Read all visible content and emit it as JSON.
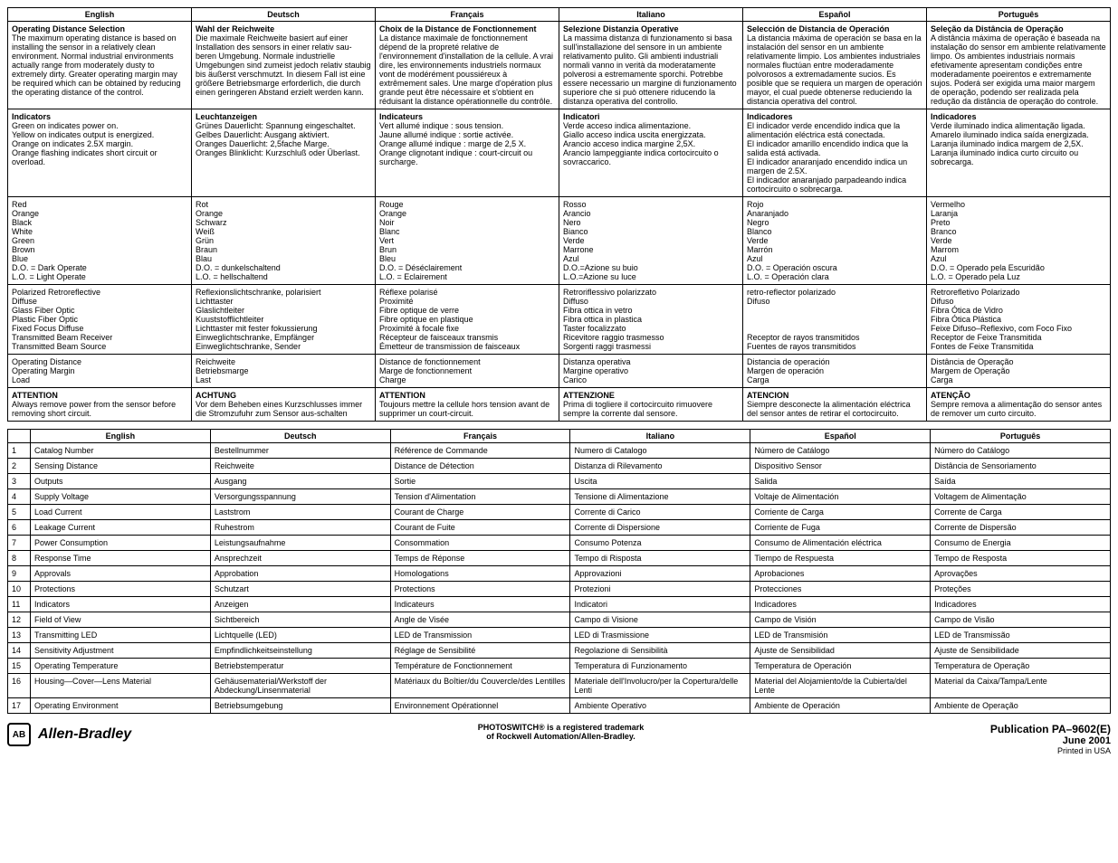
{
  "langs": [
    "English",
    "Deutsch",
    "Français",
    "Italiano",
    "Español",
    "Português"
  ],
  "table1": [
    {
      "en_title": "Operating Distance Selection",
      "en": "The maximum operating distance is based on installing the sensor in a relatively clean environment. Normal industrial environments actually range from moderately dusty to extremely dirty. Greater operating margin may be required which can be obtained by reducing the operating distance of the control.",
      "de_title": "Wahl der Reichweite",
      "de": "Die maximale Reichweite basiert auf einer Installation des sensors in einer relativ sau-beren Umgebung. Normale industrielle Umgebungen sind zumeist jedoch relativ staubig bis äußerst verschmutzt. In diesem Fall ist eine größere Betriebsmarge erforderlich, die durch einen geringeren Abstand erzielt werden kann.",
      "fr_title": "Choix de la Distance de Fonctionnement",
      "fr": "La distance maximale de fonctionnement dépend de la propreté relative de l'environnement d'installation de la cellule. A vrai dire, les environnements industriels normaux vont de modérément poussiéreux à extrêmement sales. Une marge d'opération plus grande peut être nécessaire et s'obtient en réduisant la distance opérationnelle du contrôle.",
      "it_title": "Selezione Distanzia Operative",
      "it": "La massima distanza di funzionamento si basa sull'installazione del sensore in un ambiente relativamento pulito. Gli ambienti industriali normali vanno in verità da moderatamente polverosi a estremamente sporchi. Potrebbe essere necessario un margine di funzionamento superiore che si può ottenere riducendo la distanza operativa del controllo.",
      "es_title": "Selección de Distancia de Operación",
      "es": "La distancia máxima de operación se basa en la instalación del sensor en un ambiente relativamente limpio. Los ambientes industriales normales fluctúan entre moderadamente polvorosos a extremadamente sucios. Es posible que se requiera un margen de operación mayor, el cual puede obtenerse reduciendo la distancia operativa del control.",
      "pt_title": "Seleção da Distância de Operação",
      "pt": "A distância máxima de operação é baseada na instalação do sensor em ambiente relativamente limpo. Os ambientes industriais normais efetivamente apresentam condições entre moderadamente poeirentos e extremamente sujos. Poderá ser exigida uma maior margem de operação, podendo ser realizada pela redução da distância de operação do controle."
    },
    {
      "en_title": "Indicators",
      "en": "Green on indicates power on.\nYellow on indicates output is energized.\nOrange on indicates 2.5X margin.\nOrange flashing indicates short circuit or overload.",
      "de_title": "Leuchtanzeigen",
      "de": "Grünes Dauerlicht: Spannung eingeschaltet.\nGelbes Dauerlicht: Ausgang aktiviert.\nOranges Dauerlicht: 2,5fache Marge.\nOranges Blinklicht: Kurzschluß oder Überlast.",
      "fr_title": "Indicateurs",
      "fr": "Vert allumé indique : sous tension.\nJaune allumé indique : sortie activée.\nOrange allumé indique : marge de 2,5 X.\nOrange clignotant indique : court-circuit ou surcharge.",
      "it_title": "Indicatori",
      "it": "Verde acceso indica alimentazione.\nGiallo acceso indica uscita energizzata.\nArancio acceso indica margine 2,5X.\nArancio lampeggiante indica cortocircuito o sovraccarico.",
      "es_title": "Indicadores",
      "es": "El indicador verde encendido indica que la alimentación eléctrica está conectada.\nEl indicador amarillo encendido indica que la salida está activada.\nEl indicador anaranjado encendido indica un margen de 2.5X.\nEl indicador anaranjado parpadeando indica cortocircuito o sobrecarga.",
      "pt_title": "Indicadores",
      "pt": "Verde iluminado indica alimentação ligada.\nAmarelo iluminado indica saída energizada.\nLaranja iluminado indica margem de 2,5X.\nLaranja iluminado indica curto circuito ou sobrecarga."
    },
    {
      "en": "Red\nOrange\nBlack\nWhite\nGreen\nBrown\nBlue\nD.O. = Dark Operate\nL.O. = Light Operate",
      "de": "Rot\nOrange\nSchwarz\nWeiß\nGrün\nBraun\nBlau\nD.O. = dunkelschaltend\nL.O. = hellschaltend",
      "fr": "Rouge\nOrange\nNoir\nBlanc\nVert\nBrun\nBleu\nD.O. = Déséclairement\nL.O. = Eclairement",
      "it": "Rosso\nArancio\nNero\nBianco\nVerde\nMarrone\nAzul\nD.O.=Azione su buio\nL.O.=Azione su luce",
      "es": "Rojo\nAnaranjado\nNegro\nBlanco\nVerde\nMarrón\nAzul\nD.O. = Operación oscura\nL.O. = Operación clara",
      "pt": "Vermelho\nLaranja\nPreto\nBranco\nVerde\nMarrom\nAzul\nD.O. = Operado pela Escuridão\nL.O. = Operado pela Luz"
    },
    {
      "en": "Polarized Retroreflective\nDiffuse\nGlass Fiber Optic\nPlastic Fiber Optic\nFixed Focus Diffuse\nTransmitted Beam Receiver\nTransmitted Beam Source",
      "de": "Reflexionslichtschranke, polarisiert\nLichttaster\nGlaslichtleiter\nKuuststofflichtleiter\nLichttaster mit fester fokussierung\nEinweglichtschranke, Empfänger\nEinweglichtschranke, Sender",
      "fr": "Réflexe polarisé\nProximité\nFibre optique de verre\nFibre optique en plastique\nProximité à focale fixe\nRécepteur de faisceaux transmis\nÉmetteur de transmission de faisceaux",
      "it": "Retroriflessivo polarizzato\nDiffuso\nFibra ottica in vetro\nFibra ottica in plastica\nTaster focalizzato\nRicevitore raggio trasmesso\nSorgenti raggi trasmessi",
      "es": "retro-reflector polarizado\nDifuso\n\n\n\nReceptor de rayos transmitidos\nFuentes de rayos transmitidos",
      "pt": "Retrorefletivo Polarizado\nDifuso\nFibra Ótica de Vidro\nFibra Ótica Plástica\nFeixe Difuso–Reflexivo, com Foco Fixo\nReceptor de Feixe Transmitida\nFontes de Feixe Transmitida"
    },
    {
      "en": "Operating Distance\nOperating Margin\nLoad",
      "de": "Reichweite\nBetriebsmarge\nLast",
      "fr": "Distance de fonctionnement\nMarge de fonctionnement\nCharge",
      "it": "Distanza operativa\nMargine operativo\nCarico",
      "es": "Distancia de operación\nMargen de operación\nCarga",
      "pt": "Distância de Operação\nMargem de Operação\nCarga"
    },
    {
      "en_title": "ATTENTION",
      "en": "Always remove power from the sensor before removing short circuit.",
      "de_title": "ACHTUNG",
      "de": "Vor dem Beheben eines Kurzschlusses immer die Stromzufuhr zum Sensor aus-schalten",
      "fr_title": "ATTENTION",
      "fr": "Toujours mettre la cellule hors tension avant de supprimer un court-circuit.",
      "it_title": "ATTENZIONE",
      "it": "Prima di togliere il cortocircuito rimuovere sempre la corrente dal sensore.",
      "es_title": "ATENCION",
      "es": "Siempre desconecte la alimentación eléctrica del sensor antes de retirar el cortocircuito.",
      "pt_title": "ATENÇÃO",
      "pt": "Sempre remova a alimentação do sensor antes de remover um curto circuito."
    }
  ],
  "table2": [
    {
      "n": "1",
      "en": "Catalog Number",
      "de": "Bestellnummer",
      "fr": "Référence de Commande",
      "it": "Numero di Catalogo",
      "es": "Número de Catálogo",
      "pt": "Número do Catálogo"
    },
    {
      "n": "2",
      "en": "Sensing Distance",
      "de": "Reichweite",
      "fr": "Distance de Détection",
      "it": "Distanza di Rilevamento",
      "es": "Dispositivo Sensor",
      "pt": "Distância de Sensoriamento"
    },
    {
      "n": "3",
      "en": "Outputs",
      "de": "Ausgang",
      "fr": "Sortie",
      "it": "Uscita",
      "es": "Salida",
      "pt": "Saída"
    },
    {
      "n": "4",
      "en": "Supply Voltage",
      "de": "Versorgungsspannung",
      "fr": "Tension d'Alimentation",
      "it": "Tensione di Alimentazione",
      "es": "Voltaje de Alimentación",
      "pt": "Voltagem de Alimentação"
    },
    {
      "n": "5",
      "en": "Load Current",
      "de": "Laststrom",
      "fr": "Courant de Charge",
      "it": "Corrente di Carico",
      "es": "Corriente de Carga",
      "pt": "Corrente de Carga"
    },
    {
      "n": "6",
      "en": "Leakage Current",
      "de": "Ruhestrom",
      "fr": "Courant de Fuite",
      "it": "Corrente di Dispersione",
      "es": "Corriente de Fuga",
      "pt": "Corrente de Dispersão"
    },
    {
      "n": "7",
      "en": "Power Consumption",
      "de": "Leistungsaufnahme",
      "fr": "Consommation",
      "it": "Consumo Potenza",
      "es": "Consumo de Alimentación eléctrica",
      "pt": "Consumo de Energia"
    },
    {
      "n": "8",
      "en": "Response Time",
      "de": "Ansprechzeit",
      "fr": "Temps de Réponse",
      "it": "Tempo di Risposta",
      "es": "Tiempo de Respuesta",
      "pt": "Tempo de Resposta"
    },
    {
      "n": "9",
      "en": "Approvals",
      "de": "Approbation",
      "fr": "Homologations",
      "it": "Approvazioni",
      "es": "Aprobaciones",
      "pt": "Aprovações"
    },
    {
      "n": "10",
      "en": "Protections",
      "de": "Schutzart",
      "fr": "Protections",
      "it": "Protezioni",
      "es": "Protecciones",
      "pt": "Proteções"
    },
    {
      "n": "11",
      "en": "Indicators",
      "de": "Anzeigen",
      "fr": "Indicateurs",
      "it": "Indicatori",
      "es": "Indicadores",
      "pt": "Indicadores"
    },
    {
      "n": "12",
      "en": "Field of View",
      "de": "Sichtbereich",
      "fr": "Angle de Visée",
      "it": "Campo di Visione",
      "es": "Campo de Visión",
      "pt": "Campo de Visão"
    },
    {
      "n": "13",
      "en": "Transmitting LED",
      "de": "Lichtquelle (LED)",
      "fr": "LED de Transmission",
      "it": "LED di Trasmissione",
      "es": "LED de Transmisión",
      "pt": "LED de Transmissão"
    },
    {
      "n": "14",
      "en": "Sensitivity Adjustment",
      "de": "Empfindlichkeitseinstellung",
      "fr": "Réglage de Sensibilité",
      "it": "Regolazione di Sensibilità",
      "es": "Ajuste de Sensibilidad",
      "pt": "Ajuste de Sensibilidade"
    },
    {
      "n": "15",
      "en": "Operating Temperature",
      "de": "Betriebstemperatur",
      "fr": "Température de Fonctionnement",
      "it": "Temperatura di Funzionamento",
      "es": "Temperatura de Operación",
      "pt": "Temperatura de Operação"
    },
    {
      "n": "16",
      "en": "Housing—Cover—Lens Material",
      "de": "Gehäusematerial/Werkstoff der Abdeckung/Linsenmaterial",
      "fr": "Matériaux du Boîtier/du Couvercle/des Lentilles",
      "it": "Materiale dell'Involucro/per la Copertura/delle Lenti",
      "es": "Material del Alojamiento/de la Cubierta/del Lente",
      "pt": "Material da Caixa/Tampa/Lente"
    },
    {
      "n": "17",
      "en": "Operating Environment",
      "de": "Betriebsumgebung",
      "fr": "Environnement Opérationnel",
      "it": "Ambiente Operativo",
      "es": "Ambiente de Operación",
      "pt": "Ambiente de Operação"
    }
  ],
  "footer": {
    "brand": "Allen-Bradley",
    "mid1": "PHOTOSWITCH® is a registered trademark",
    "mid2": "of Rockwell Automation/Allen-Bradley.",
    "pub": "Publication PA–9602(E)",
    "date": "June 2001",
    "printed": "Printed in USA"
  }
}
